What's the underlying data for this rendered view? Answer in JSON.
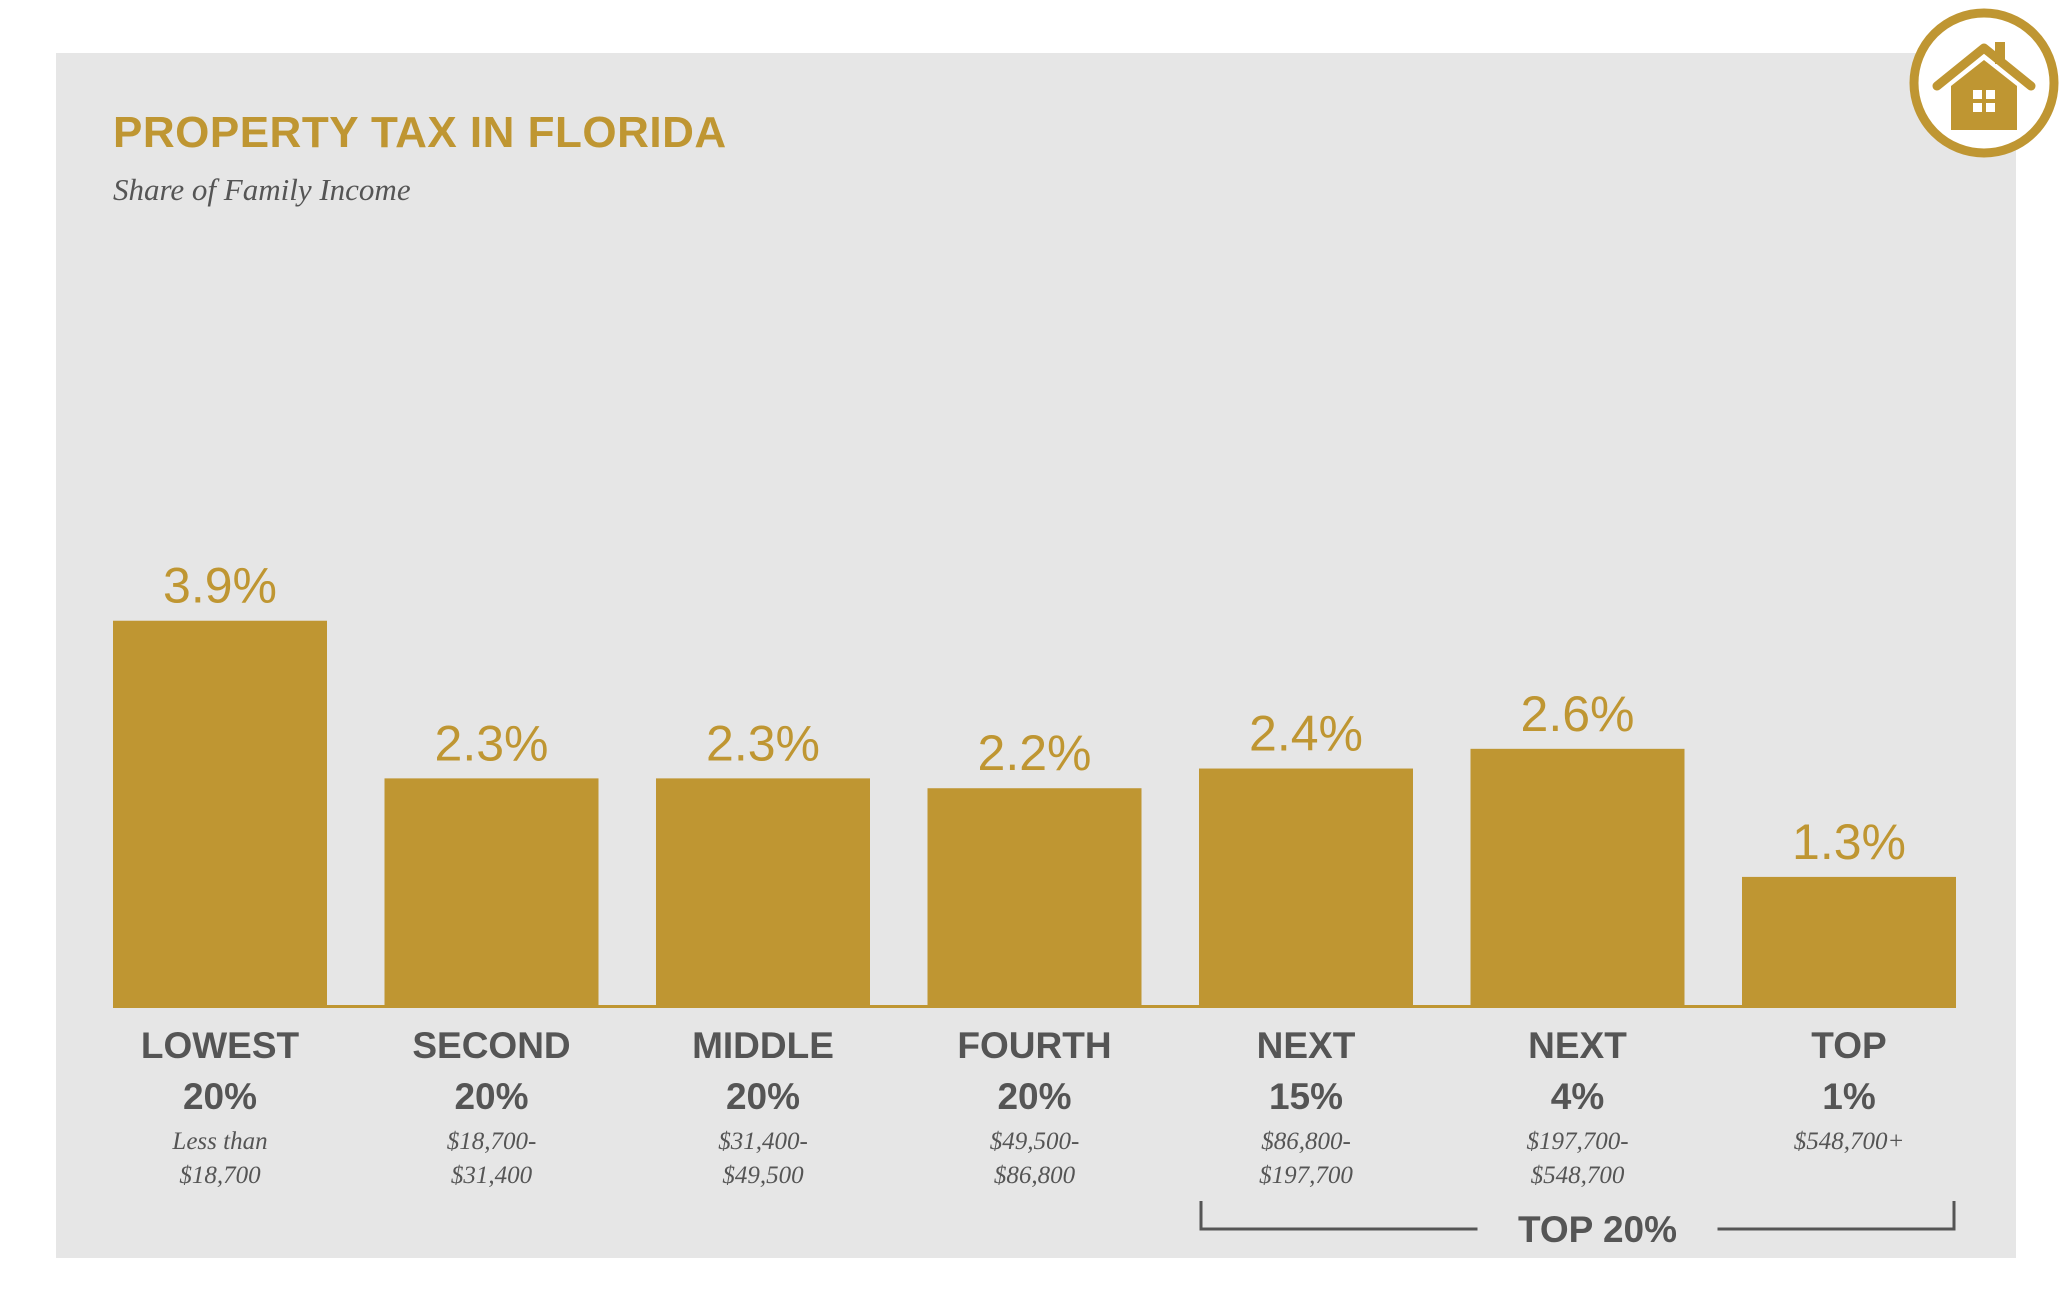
{
  "colors": {
    "bar": "#bf9632",
    "text": "#555555",
    "panel": "#e6e6e6",
    "logo": "#bf9632"
  },
  "logo": {
    "icon": "house-icon"
  },
  "chart_data": {
    "type": "bar",
    "title": "PROPERTY TAX IN FLORIDA",
    "subtitle": "Share of Family Income",
    "xlabel": "",
    "ylabel": "",
    "ylim": [
      0,
      10.2
    ],
    "grid": false,
    "legend": "none",
    "unit": "%",
    "categories": [
      {
        "line1": "LOWEST",
        "line2": "20%",
        "range1": "Less than",
        "range2": "$18,700"
      },
      {
        "line1": "SECOND",
        "line2": "20%",
        "range1": "$18,700-",
        "range2": "$31,400"
      },
      {
        "line1": "MIDDLE",
        "line2": "20%",
        "range1": "$31,400-",
        "range2": "$49,500"
      },
      {
        "line1": "FOURTH",
        "line2": "20%",
        "range1": "$49,500-",
        "range2": "$86,800"
      },
      {
        "line1": "NEXT",
        "line2": "15%",
        "range1": "$86,800-",
        "range2": "$197,700"
      },
      {
        "line1": "NEXT",
        "line2": "4%",
        "range1": "$197,700-",
        "range2": "$548,700"
      },
      {
        "line1": "TOP",
        "line2": "1%",
        "range1": "$548,700+",
        "range2": ""
      }
    ],
    "values": [
      3.9,
      2.3,
      2.3,
      2.2,
      2.4,
      2.6,
      1.3
    ],
    "value_labels": [
      "3.9%",
      "2.3%",
      "2.3%",
      "2.2%",
      "2.4%",
      "2.6%",
      "1.3%"
    ],
    "group": {
      "label": "TOP 20%",
      "from_index": 4,
      "to_index": 6
    }
  }
}
